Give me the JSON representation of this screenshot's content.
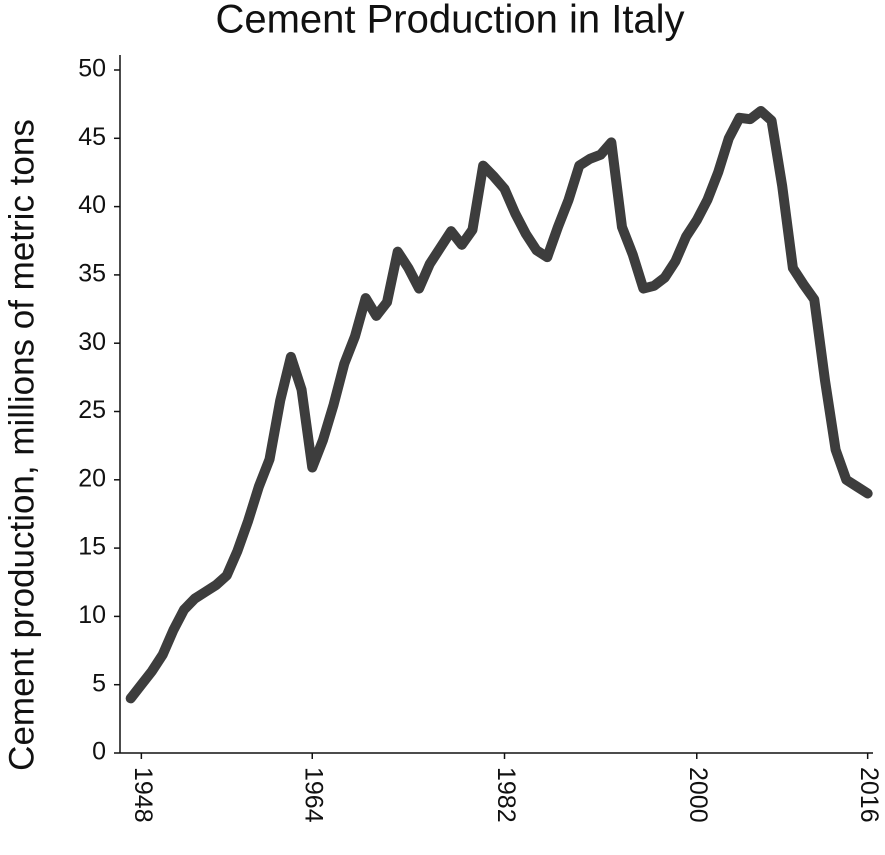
{
  "chart_data": {
    "type": "line",
    "title": "Cement Production in Italy",
    "y_label": "Cement production, millions of metric tons",
    "x": [
      1947,
      1948,
      1949,
      1950,
      1951,
      1952,
      1953,
      1954,
      1955,
      1956,
      1957,
      1958,
      1959,
      1960,
      1961,
      1962,
      1963,
      1964,
      1965,
      1966,
      1967,
      1968,
      1969,
      1970,
      1971,
      1972,
      1973,
      1974,
      1975,
      1976,
      1977,
      1978,
      1979,
      1980,
      1981,
      1982,
      1983,
      1984,
      1985,
      1986,
      1987,
      1988,
      1989,
      1990,
      1991,
      1992,
      1993,
      1994,
      1995,
      1996,
      1997,
      1998,
      1999,
      2000,
      2001,
      2002,
      2003,
      2004,
      2005,
      2006,
      2007,
      2008,
      2009,
      2010,
      2011,
      2012,
      2013,
      2014,
      2015,
      2016
    ],
    "series": [
      {
        "name": "Cement production",
        "color": "#3d3d3d",
        "values": [
          4,
          5,
          6,
          7.2,
          9,
          10.5,
          11.3,
          11.8,
          12.3,
          13,
          14.8,
          17,
          19.5,
          21.5,
          25.8,
          29,
          26.6,
          20.9,
          22.9,
          25.5,
          28.5,
          30.5,
          33.3,
          32,
          33,
          36.7,
          35.5,
          34,
          35.8,
          37,
          38.2,
          37.2,
          38.3,
          43,
          42.2,
          41.3,
          39.5,
          38,
          36.8,
          36.3,
          38.5,
          40.5,
          43,
          43.5,
          43.8,
          44.7,
          38.5,
          36.5,
          34,
          34.2,
          34.8,
          36,
          37.8,
          39,
          40.5,
          42.5,
          45,
          46.5,
          46.4,
          47,
          46.3,
          41.5,
          35.5,
          34.3,
          33.2,
          27.3,
          22.2,
          20,
          19.5,
          19
        ]
      }
    ],
    "xlim": [
      1946,
      2016.5
    ],
    "ylim": [
      0,
      50
    ],
    "xticks": [
      1948,
      1964,
      1982,
      2000,
      2016
    ],
    "yticks": [
      0,
      5,
      10,
      15,
      20,
      25,
      30,
      35,
      40,
      45,
      50
    ]
  }
}
